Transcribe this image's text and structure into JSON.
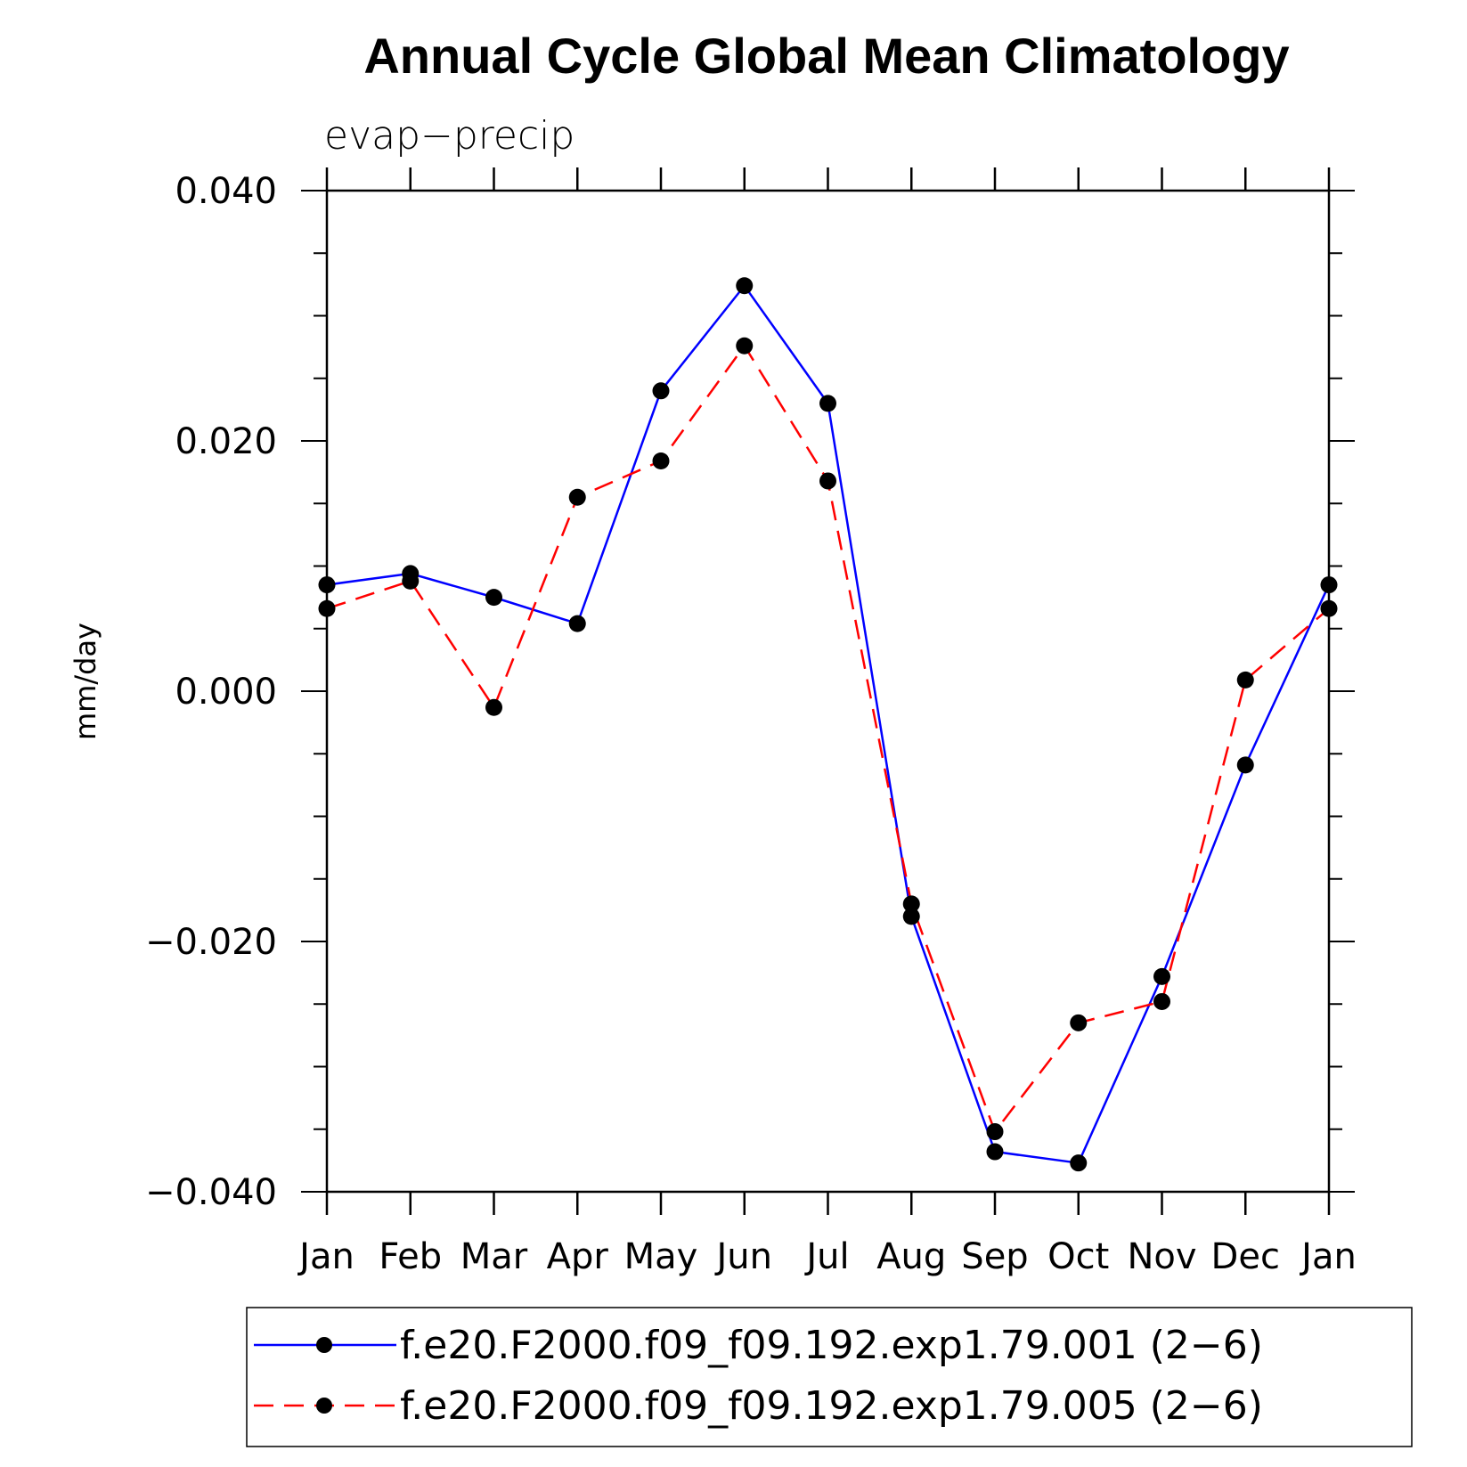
{
  "chart_data": {
    "type": "line",
    "title": "Annual Cycle Global Mean Climatology",
    "subtitle": "evap−precip",
    "ylabel": "mm/day",
    "xlabel": "",
    "categories": [
      "Jan",
      "Feb",
      "Mar",
      "Apr",
      "May",
      "Jun",
      "Jul",
      "Aug",
      "Sep",
      "Oct",
      "Nov",
      "Dec",
      "Jan"
    ],
    "ylim": [
      -0.04,
      0.04
    ],
    "y_major_ticks": [
      0.04,
      0.02,
      0.0,
      -0.02,
      -0.04
    ],
    "y_tick_labels": [
      "0.040",
      "0.020",
      "0.000",
      "−0.020",
      "−0.040"
    ],
    "y_minor_step": 0.005,
    "grid": false,
    "legend_position": "bottom",
    "series": [
      {
        "name": "f.e20.F2000.f09_f09.192.exp1.79.001 (2−6)",
        "color": "#0000ff",
        "line_style": "solid",
        "marker": "filled-circle",
        "values": [
          0.0085,
          0.0094,
          0.0075,
          0.0054,
          0.024,
          0.0324,
          0.023,
          -0.018,
          -0.0368,
          -0.0377,
          -0.0228,
          -0.0059,
          0.0085
        ]
      },
      {
        "name": "f.e20.F2000.f09_f09.192.exp1.79.005 (2−6)",
        "color": "#ff0000",
        "line_style": "dashed",
        "marker": "filled-circle",
        "values": [
          0.0066,
          0.0088,
          -0.0013,
          0.0155,
          0.0184,
          0.0276,
          0.0168,
          -0.017,
          -0.0352,
          -0.0265,
          -0.0248,
          0.0009,
          0.0066
        ]
      }
    ]
  }
}
